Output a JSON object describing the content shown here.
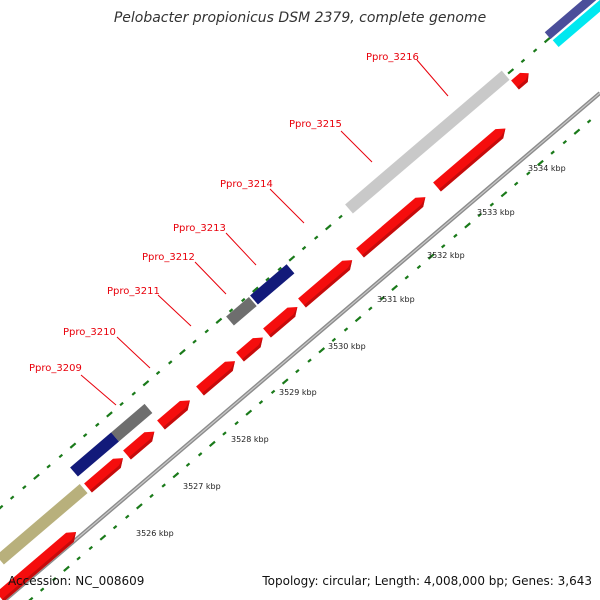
{
  "title": "Pelobacter propionicus DSM 2379, complete genome",
  "accession_text": "Accession: NC_008609",
  "summary_text": "Topology: circular; Length: 4,008,000 bp; Genes: 3,643",
  "colors": {
    "gene": "#f50d0d",
    "gene_dark": "#9d0b0b",
    "backbone": "#8c8c8c",
    "label": "#e8000b",
    "tick": "#1a7a1a",
    "navy": "#121a7a",
    "gray": "#6e6e6e",
    "lightgray": "#c9c9c9",
    "olive": "#b8b07c",
    "cyan": "#00e8f0",
    "purple": "#4b4e9a"
  },
  "gene_labels": [
    "Ppro_3209",
    "Ppro_3210",
    "Ppro_3211",
    "Ppro_3212",
    "Ppro_3213",
    "Ppro_3214",
    "Ppro_3215",
    "Ppro_3216"
  ],
  "tick_labels": [
    "3526 kbp",
    "3527 kbp",
    "3528 kbp",
    "3529 kbp",
    "3530 kbp",
    "3531 kbp",
    "3532 kbp",
    "3533 kbp",
    "3534 kbp"
  ]
}
